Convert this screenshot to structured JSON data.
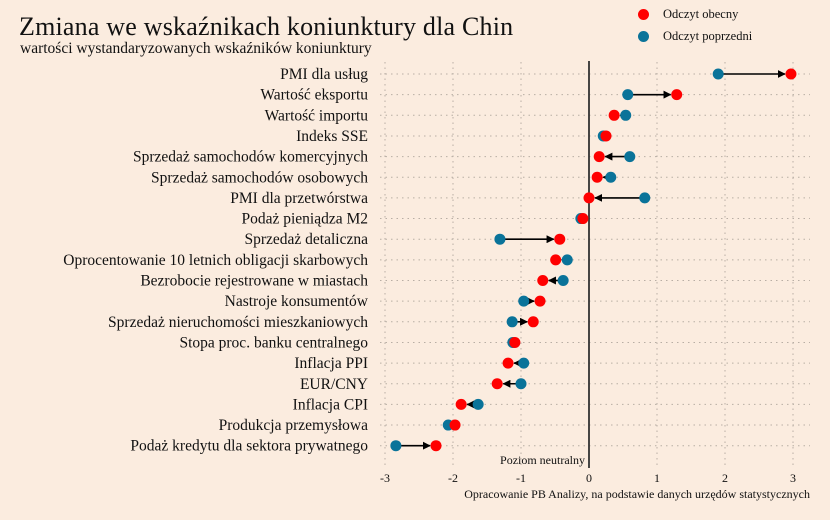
{
  "chart_data": {
    "type": "dumbbell",
    "title": "Zmiana we wskaźnikach koniunktury dla Chin",
    "subtitle": "wartości wystandaryzowanych wskaźników koniunktury",
    "xlim": [
      -3,
      3
    ],
    "x_ticks": [
      "-3",
      "-2",
      "-1",
      "0",
      "1",
      "2",
      "3"
    ],
    "x_tick_values": [
      -3,
      -2,
      -1,
      0,
      1,
      2,
      3
    ],
    "grid": true,
    "neutral_label": "Poziom neutralny",
    "source": "Opracowanie PB Analizy, na podstawie danych urzędów statystycznych",
    "legend": {
      "position": "top-right",
      "entries": [
        {
          "name": "Odczyt obecny",
          "color": "#ff0000"
        },
        {
          "name": "Odczyt poprzedni",
          "color": "#0a7399"
        }
      ]
    },
    "categories": [
      "PMI dla usług",
      "Wartość eksportu",
      "Wartość importu",
      "Indeks SSE",
      "Sprzedaż samochodów komercyjnych",
      "Sprzedaż samochodów osobowych",
      "PMI dla przetwórstwa",
      "Podaż pieniądza M2",
      "Sprzedaż detaliczna",
      "Oprocentowanie 10 letnich obligacji skarbowych",
      "Bezrobocie rejestrowane w miastach",
      "Nastroje konsumentów",
      "Sprzedaż nieruchomości mieszkaniowych",
      "Stopa proc. banku centralnego",
      "Inflacja PPI",
      "EUR/CNY",
      "Inflacja CPI",
      "Produkcja przemysłowa",
      "Podaż kredytu dla sektora prywatnego"
    ],
    "series": [
      {
        "name": "Odczyt obecny",
        "values": [
          2.97,
          1.29,
          0.37,
          0.25,
          0.15,
          0.12,
          0.0,
          -0.09,
          -0.43,
          -0.49,
          -0.68,
          -0.72,
          -0.82,
          -1.09,
          -1.19,
          -1.35,
          -1.88,
          -1.97,
          -2.25
        ]
      },
      {
        "name": "Odczyt poprzedni",
        "values": [
          1.9,
          0.57,
          0.54,
          0.21,
          0.6,
          0.32,
          0.82,
          -0.12,
          -1.31,
          -0.32,
          -0.38,
          -0.96,
          -1.13,
          -1.12,
          -0.96,
          -1.0,
          -1.63,
          -2.07,
          -2.84
        ]
      }
    ]
  }
}
